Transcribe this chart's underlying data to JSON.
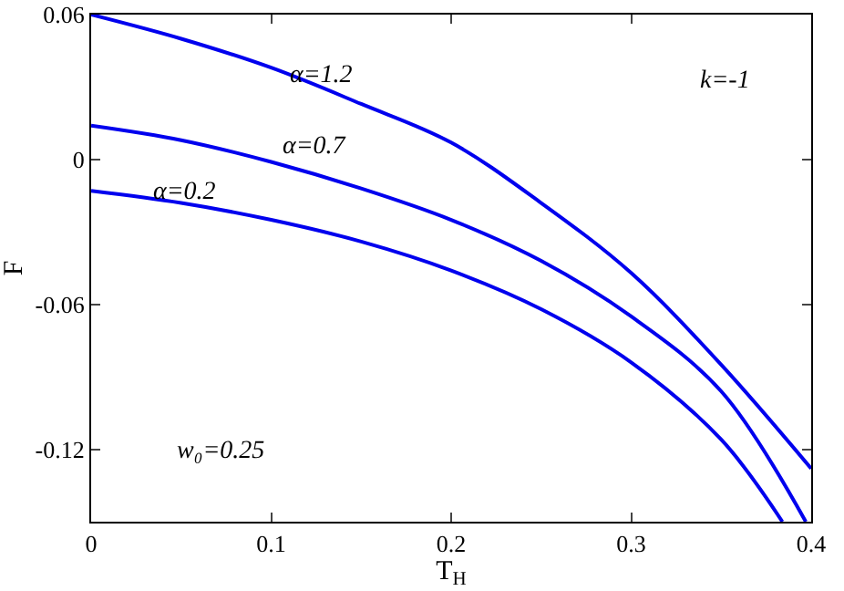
{
  "chart_data": {
    "type": "line",
    "xlabel": "T$_{H}$",
    "ylabel": "F",
    "x": [
      0,
      0.05,
      0.1,
      0.15,
      0.2,
      0.25,
      0.3,
      0.35,
      0.4
    ],
    "series": [
      {
        "color": "#0000ee",
        "values": [
          0.06,
          0.05,
          0.038,
          0.023,
          0.007,
          -0.018,
          -0.047,
          -0.085,
          -0.128
        ]
      },
      {
        "color": "#0000ee",
        "x": [
          0,
          0.05,
          0.1,
          0.15,
          0.2,
          0.25,
          0.3,
          0.35,
          0.397
        ],
        "values": [
          0.014,
          0.008,
          -0.001,
          -0.012,
          -0.025,
          -0.042,
          -0.065,
          -0.096,
          -0.15
        ]
      },
      {
        "color": "#0000ee",
        "x": [
          0,
          0.05,
          0.1,
          0.15,
          0.2,
          0.25,
          0.3,
          0.35,
          0.384
        ],
        "values": [
          -0.013,
          -0.018,
          -0.025,
          -0.034,
          -0.046,
          -0.062,
          -0.084,
          -0.116,
          -0.15
        ]
      }
    ],
    "annotations": [
      "α=1.2",
      "α=0.7",
      "α=0.2",
      "k=-1",
      "w₀=0.25"
    ],
    "xlim": [
      0,
      0.4
    ],
    "xticks": [
      0,
      0.1,
      0.2,
      0.3,
      0.4
    ],
    "ylim": [
      -0.15,
      0.06
    ],
    "yticks": [
      0.06,
      0,
      -0.06,
      -0.12
    ],
    "grid": false,
    "marker": "none",
    "line_style": "solid"
  }
}
